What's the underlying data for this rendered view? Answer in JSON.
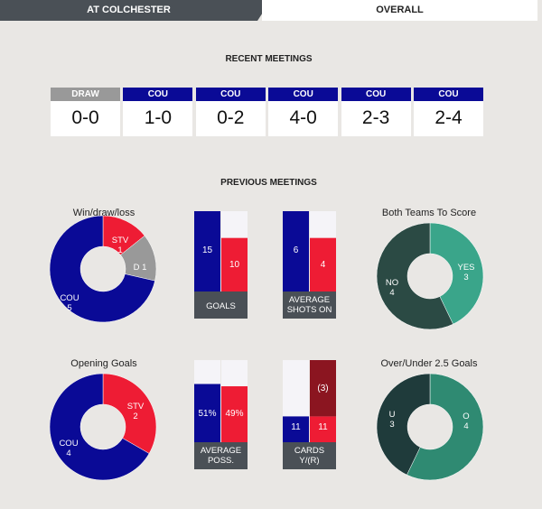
{
  "tabs": {
    "left": "AT COLCHESTER",
    "right": "OVERALL"
  },
  "colors": {
    "cou": "#0a0a96",
    "stv": "#ee1c34",
    "draw": "#999999",
    "dark_gray": "#4a5056",
    "btts_dark": "#2b4a44",
    "btts_light": "#3aa58a",
    "ou_dark": "#1f3b3b",
    "ou_light": "#2f8a72",
    "cards_red": "#8b1520",
    "label_bg": "#4a5056"
  },
  "recent": {
    "title": "RECENT MEETINGS",
    "matches": [
      {
        "winner": "DRAW",
        "score": "0-0"
      },
      {
        "winner": "COU",
        "score": "1-0"
      },
      {
        "winner": "COU",
        "score": "0-2"
      },
      {
        "winner": "COU",
        "score": "4-0"
      },
      {
        "winner": "COU",
        "score": "2-3"
      },
      {
        "winner": "COU",
        "score": "2-4"
      }
    ]
  },
  "previous": {
    "title": "PREVIOUS MEETINGS"
  },
  "chart_data": [
    {
      "type": "pie",
      "title": "Win/draw/loss",
      "labels": [
        "STV",
        "D",
        "COU"
      ],
      "values": [
        1,
        1,
        5
      ],
      "slice_labels": [
        [
          "STV",
          "1"
        ],
        [
          "D 1"
        ],
        [
          "COU",
          "5"
        ]
      ]
    },
    {
      "type": "bar",
      "title": "GOALS",
      "categories": [
        "COU",
        "STV"
      ],
      "values": [
        15,
        10
      ]
    },
    {
      "type": "bar",
      "title": "AVERAGE SHOTS ON",
      "title_lines": [
        "AVERAGE",
        "SHOTS ON"
      ],
      "categories": [
        "COU",
        "STV"
      ],
      "values": [
        6,
        4
      ]
    },
    {
      "type": "pie",
      "title": "Both Teams To Score",
      "labels": [
        "YES",
        "NO"
      ],
      "values": [
        3,
        4
      ],
      "slice_labels": [
        [
          "YES",
          "3"
        ],
        [
          "NO",
          "4"
        ]
      ]
    },
    {
      "type": "pie",
      "title": "Opening Goals",
      "labels": [
        "STV",
        "COU"
      ],
      "values": [
        2,
        4
      ],
      "slice_labels": [
        [
          "STV",
          "2"
        ],
        [
          "COU",
          "4"
        ]
      ]
    },
    {
      "type": "bar",
      "title": "AVERAGE POSS.",
      "title_lines": [
        "AVERAGE",
        "POSS."
      ],
      "categories": [
        "COU",
        "STV"
      ],
      "values": [
        51,
        49
      ],
      "value_labels": [
        "51%",
        "49%"
      ]
    },
    {
      "type": "bar",
      "title": "CARDS Y/(R)",
      "title_lines": [
        "CARDS",
        "Y/(R)"
      ],
      "categories": [
        "COU",
        "STV"
      ],
      "series": [
        {
          "name": "yellow",
          "values": [
            11,
            11
          ]
        },
        {
          "name": "red",
          "values": [
            0,
            3
          ]
        }
      ],
      "value_labels": [
        "11",
        "11",
        "(3)"
      ]
    },
    {
      "type": "pie",
      "title": "Over/Under 2.5 Goals",
      "labels": [
        "O",
        "U"
      ],
      "values": [
        4,
        3
      ],
      "slice_labels": [
        [
          "O",
          "4"
        ],
        [
          "U",
          "3"
        ]
      ]
    }
  ]
}
